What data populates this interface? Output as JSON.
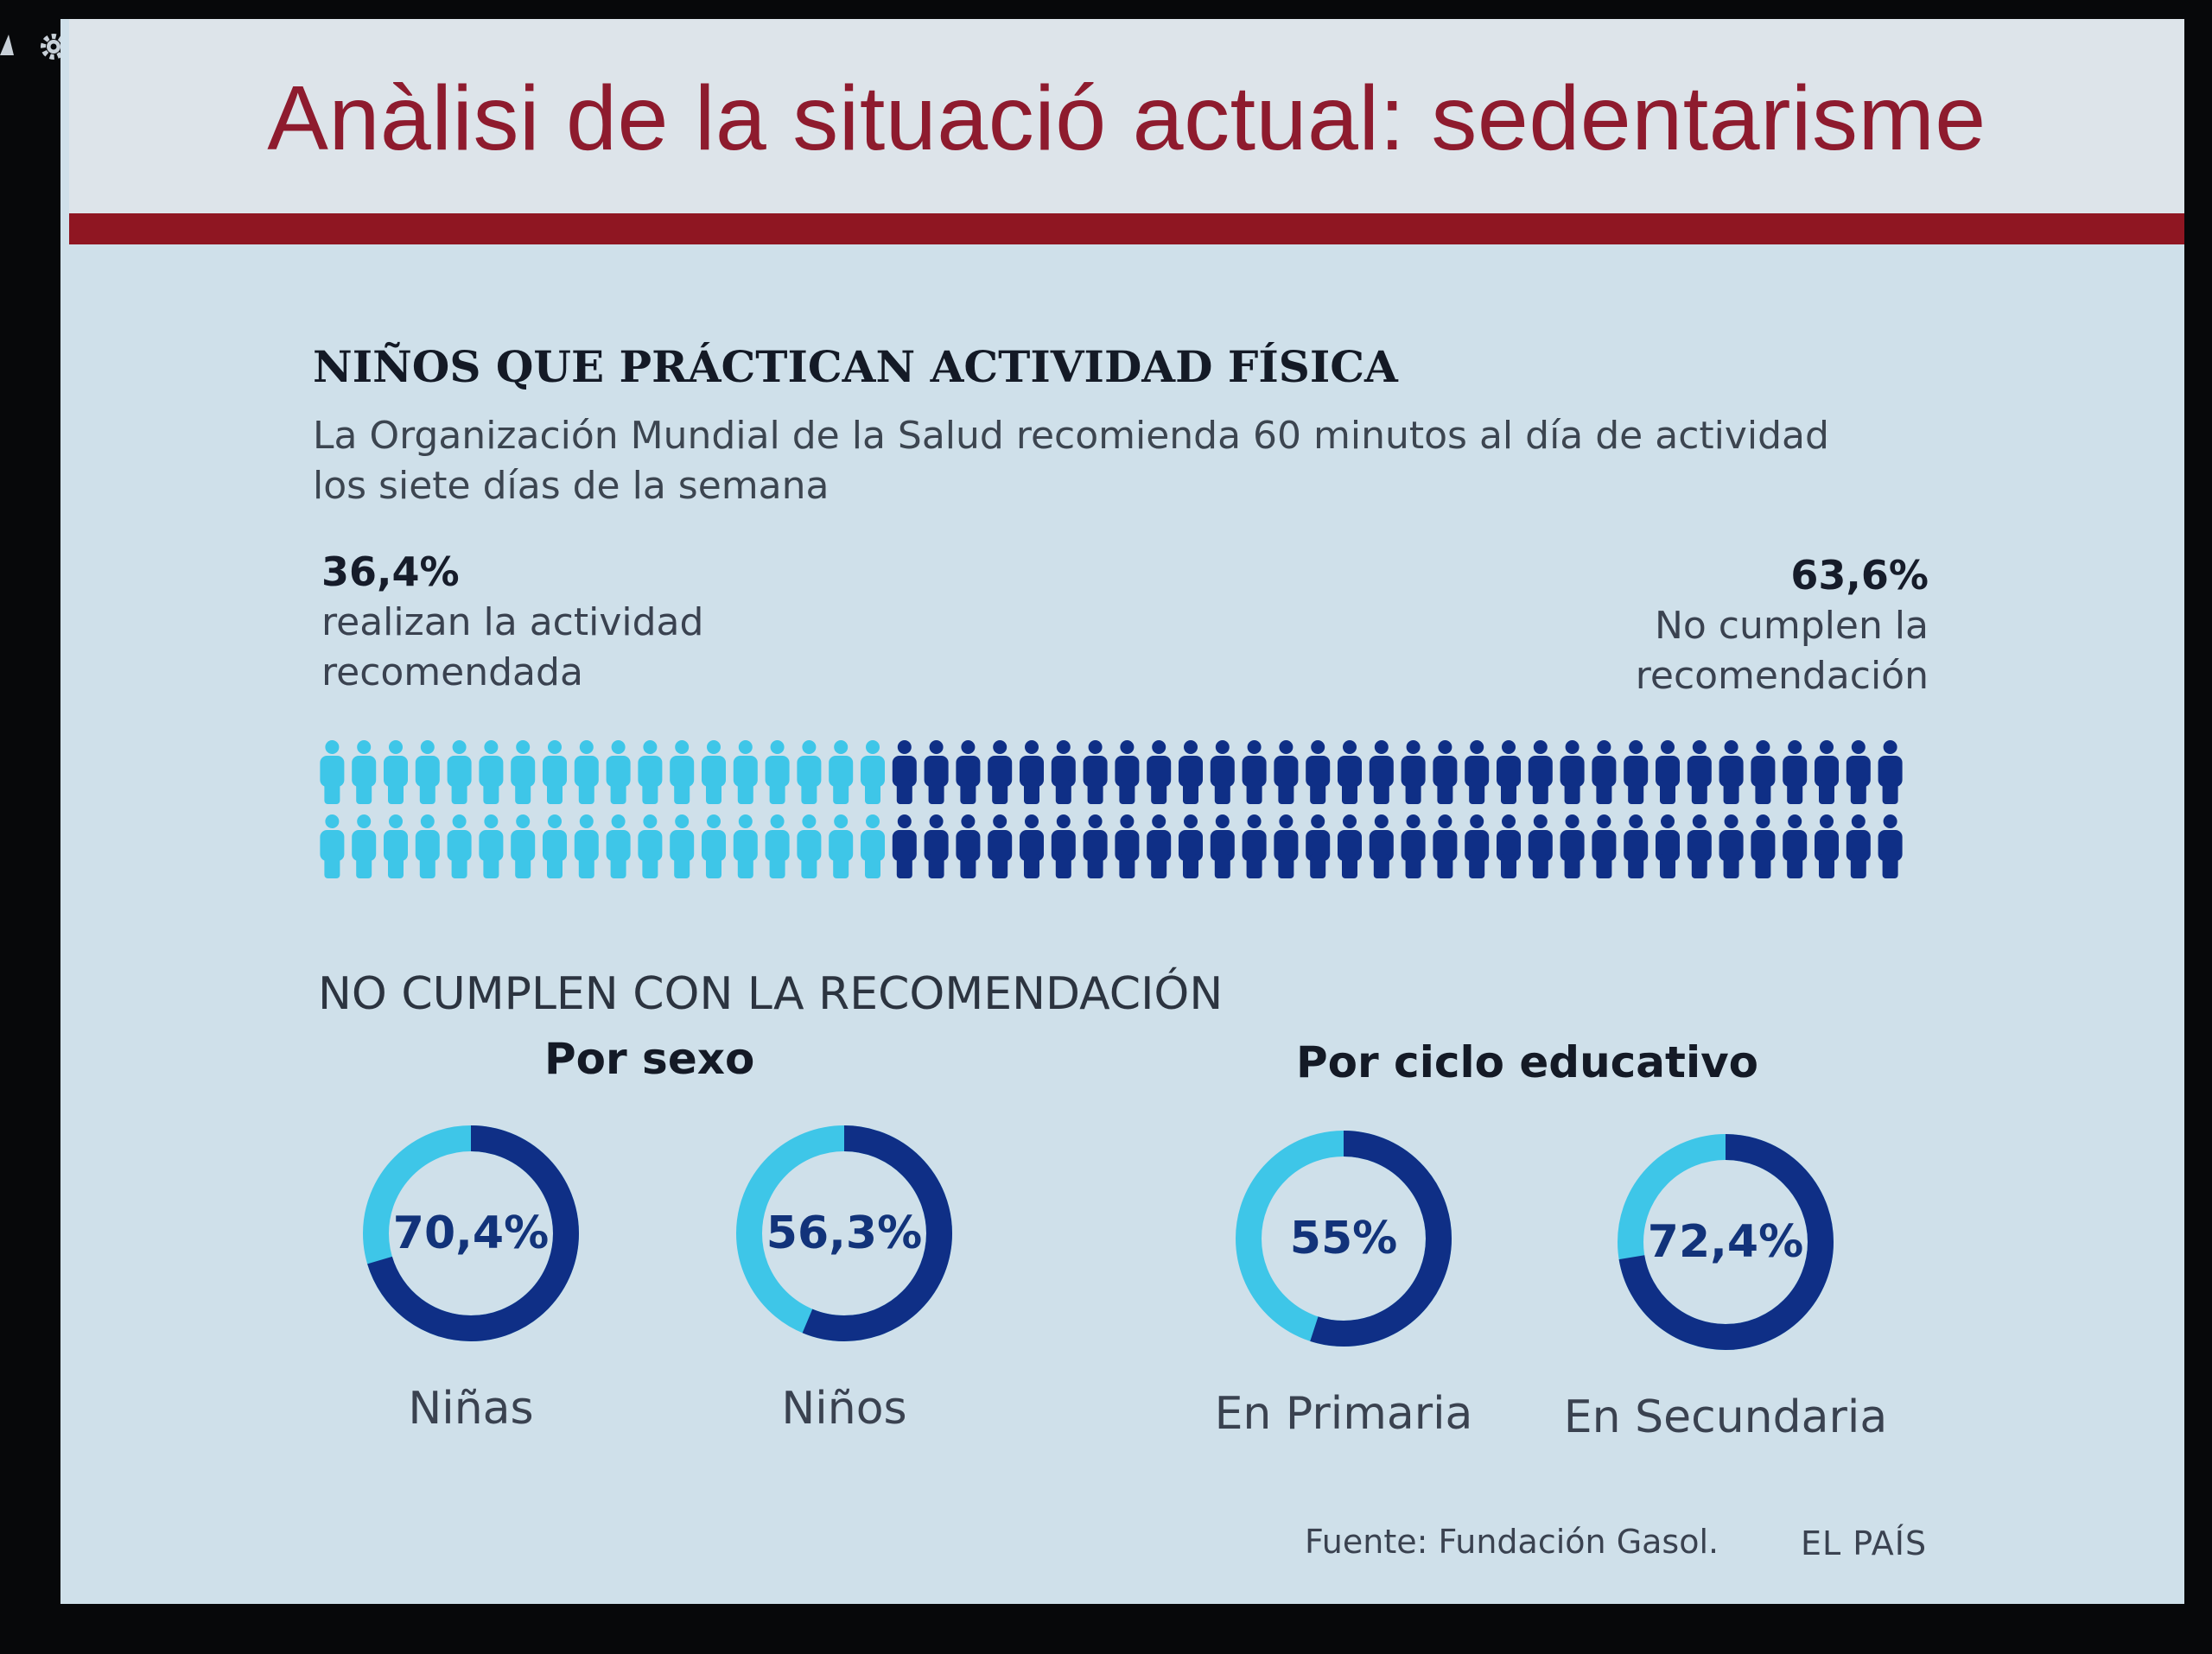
{
  "slide": {
    "title": "Anàlisi de la situació actual: sedentarisme"
  },
  "infographic": {
    "heading": "NIÑOS QUE PRÁCTICAN ACTIVIDAD FÍSICA",
    "subtitle_line1": "La Organización Mundial de la Salud recomienda 60 minutos al día de actividad",
    "subtitle_line2": "los siete días de la semana",
    "left_stat": {
      "pct": "36,4%",
      "line1": "realizan la actividad",
      "line2": "recomendada"
    },
    "right_stat": {
      "pct": "63,6%",
      "line1": "No cumplen la",
      "line2": "recomendación"
    },
    "section_title": "NO CUMPLEN CON LA RECOMENDACIÓN",
    "group_sex": "Por sexo",
    "group_cycle": "Por ciclo educativo",
    "footer_source": "Fuente: Fundación Gasol.",
    "footer_brand": "EL PAÍS"
  },
  "chart_data": [
    {
      "type": "pictogram",
      "categories": [
        "realizan la actividad recomendada",
        "No cumplen la recomendación"
      ],
      "values": [
        36.4,
        63.6
      ],
      "unit": "%"
    },
    {
      "type": "pie",
      "title": "Por sexo",
      "series": [
        {
          "name": "Niñas",
          "value": 70.4,
          "label": "70,4%"
        },
        {
          "name": "Niños",
          "value": 56.3,
          "label": "56,3%"
        }
      ]
    },
    {
      "type": "pie",
      "title": "Por ciclo educativo",
      "series": [
        {
          "name": "En Primaria",
          "value": 55,
          "label": "55%"
        },
        {
          "name": "En Secundaria",
          "value": 72.4,
          "label": "72,4%"
        }
      ]
    }
  ],
  "colors": {
    "title_red": "#8e1b2e",
    "rule_red": "#8f1622",
    "light_blue": "#3ec6e8",
    "dark_blue": "#0f2f86",
    "background": "#cfe0ea"
  },
  "toolbar_icons": [
    "arrow-up-icon",
    "gear-icon",
    "keyhole-icon",
    "keyhole-icon"
  ]
}
